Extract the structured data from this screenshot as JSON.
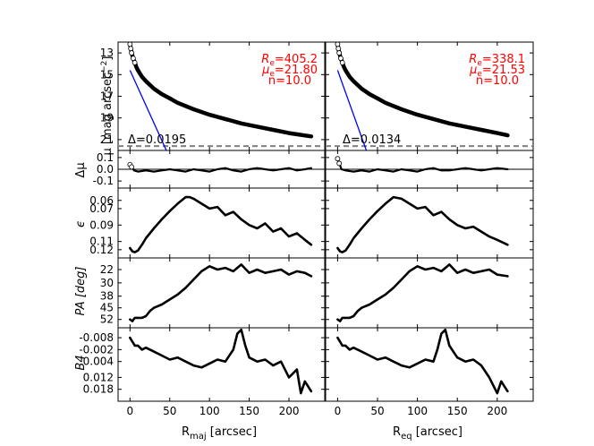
{
  "colors": {
    "fit_line": "#0000ff",
    "sersic_curve": "#ff0000",
    "profile": "#000000",
    "threshold": "#808080",
    "annotation": "#ff0000"
  },
  "xlabels": {
    "left_main": "R",
    "left_sub": "maj",
    "left_rest": " [arcsec]",
    "right_main": "R",
    "right_sub": "eq",
    "right_rest": " [arcsec]"
  },
  "ylabels": {
    "mu": "μ [mag arcsec",
    "mu_exp": "−2",
    "mu_close": "]",
    "dmu": "Δμ",
    "eps": "ϵ",
    "pa": "PA [deg]",
    "b4": "B4"
  },
  "annotations": {
    "left": {
      "re": "R",
      "re_sub": "e",
      "re_val": "=405.2",
      "mue": "μ",
      "mue_sub": "e",
      "mue_val": "=21.80",
      "n": "n=10.0",
      "delta": "Δ=0.0195"
    },
    "right": {
      "re": "R",
      "re_sub": "e",
      "re_val": "=338.1",
      "mue": "μ",
      "mue_sub": "e",
      "mue_val": "=21.53",
      "n": "n=10.0",
      "delta": "Δ=0.0134"
    }
  },
  "chart_data": {
    "type": "line",
    "title": "",
    "x_ticks": [
      0,
      50,
      100,
      150,
      200
    ],
    "columns": [
      {
        "name": "major axis",
        "xlabel": "R_maj [arcsec]",
        "xlim": [
          -15,
          245
        ],
        "xmax_data": 228
      },
      {
        "name": "equivalent radius",
        "xlabel": "R_eq [arcsec]",
        "xlim": [
          -15,
          245
        ],
        "xmax_data": 213
      }
    ],
    "panels": [
      {
        "name": "mu",
        "ylabel": "μ [mag arcsec^-2]",
        "ylim": [
          12,
          22
        ],
        "inverted": true,
        "ticks": [
          "13",
          "15",
          "17",
          "19",
          "21"
        ],
        "threshold": 21.6,
        "series": {
          "left": {
            "x": [
              0,
              1,
              2,
              4,
              6,
              8,
              10,
              15,
              20,
              30,
              40,
              50,
              60,
              80,
              100,
              120,
              140,
              160,
              180,
              200,
              228
            ],
            "y": [
              12.2,
              12.6,
              13.0,
              13.5,
              13.9,
              14.3,
              14.6,
              15.2,
              15.6,
              16.3,
              16.8,
              17.2,
              17.6,
              18.2,
              18.7,
              19.1,
              19.5,
              19.8,
              20.1,
              20.4,
              20.7
            ]
          },
          "right": {
            "x": [
              0,
              1,
              2,
              4,
              6,
              8,
              10,
              15,
              20,
              30,
              40,
              50,
              60,
              80,
              100,
              120,
              140,
              160,
              180,
              200,
              213
            ],
            "y": [
              12.2,
              12.6,
              13.0,
              13.5,
              13.9,
              14.3,
              14.6,
              15.2,
              15.6,
              16.3,
              16.8,
              17.2,
              17.6,
              18.2,
              18.7,
              19.1,
              19.5,
              19.8,
              20.1,
              20.4,
              20.6
            ]
          }
        },
        "fit_line": {
          "left": {
            "x": [
              0,
              47
            ],
            "y": [
              14.6,
              22.2
            ]
          },
          "right": {
            "x": [
              0,
              37
            ],
            "y": [
              14.6,
              22.2
            ]
          }
        }
      },
      {
        "name": "dmu",
        "ylabel": "Δμ",
        "ylim": [
          0.16,
          -0.16
        ],
        "inverted": false,
        "ticks": [
          "-0.1",
          "0.0",
          "0.1"
        ],
        "tick_values": [
          -0.1,
          0.0,
          0.1
        ],
        "series": {
          "left": {
            "x": [
              0,
              2,
              5,
              10,
              20,
              30,
              40,
              50,
              60,
              70,
              80,
              90,
              100,
              110,
              120,
              130,
              140,
              150,
              160,
              170,
              180,
              190,
              200,
              210,
              220,
              228
            ],
            "y": [
              0.04,
              0.02,
              -0.01,
              -0.02,
              -0.01,
              -0.02,
              -0.01,
              0.0,
              -0.01,
              -0.02,
              0.0,
              -0.01,
              -0.02,
              0.0,
              0.01,
              -0.01,
              -0.02,
              0.0,
              0.01,
              0.0,
              -0.01,
              0.0,
              0.01,
              -0.01,
              0.0,
              0.01
            ]
          },
          "right": {
            "x": [
              0,
              2,
              5,
              10,
              20,
              30,
              40,
              50,
              60,
              70,
              80,
              90,
              100,
              110,
              120,
              130,
              140,
              150,
              160,
              170,
              180,
              190,
              200,
              213
            ],
            "y": [
              0.09,
              0.05,
              0.0,
              -0.01,
              -0.02,
              -0.01,
              -0.02,
              0.0,
              -0.01,
              -0.02,
              0.0,
              -0.01,
              -0.02,
              0.0,
              0.01,
              -0.01,
              -0.01,
              0.0,
              0.01,
              0.0,
              -0.01,
              0.0,
              0.01,
              0.0
            ]
          }
        }
      },
      {
        "name": "eps",
        "ylabel": "ϵ",
        "ylim": [
          0.045,
          0.13
        ],
        "ticks": [
          "0.12",
          "0.11",
          "0.09",
          "0.07",
          "0.06"
        ],
        "tick_values": [
          0.12,
          0.11,
          0.09,
          0.07,
          0.06
        ],
        "series": {
          "left": {
            "x": [
              0,
              3,
              6,
              10,
              15,
              20,
              30,
              40,
              50,
              60,
              70,
              75,
              80,
              90,
              100,
              110,
              120,
              130,
              140,
              150,
              160,
              170,
              180,
              190,
              200,
              210,
              220,
              228
            ],
            "y": [
              0.118,
              0.122,
              0.123,
              0.121,
              0.114,
              0.106,
              0.094,
              0.083,
              0.073,
              0.064,
              0.056,
              0.056,
              0.058,
              0.064,
              0.07,
              0.068,
              0.078,
              0.074,
              0.083,
              0.09,
              0.094,
              0.088,
              0.098,
              0.094,
              0.104,
              0.1,
              0.108,
              0.114
            ]
          },
          "right": {
            "x": [
              0,
              3,
              6,
              10,
              15,
              20,
              30,
              40,
              50,
              60,
              70,
              80,
              90,
              100,
              110,
              120,
              130,
              140,
              150,
              160,
              170,
              180,
              190,
              200,
              213
            ],
            "y": [
              0.118,
              0.122,
              0.123,
              0.121,
              0.114,
              0.106,
              0.094,
              0.083,
              0.073,
              0.064,
              0.056,
              0.058,
              0.064,
              0.07,
              0.068,
              0.078,
              0.074,
              0.083,
              0.09,
              0.094,
              0.092,
              0.098,
              0.104,
              0.108,
              0.114
            ]
          }
        }
      },
      {
        "name": "pa",
        "ylabel": "PA [deg]",
        "ylim": [
          15,
          57
        ],
        "ticks": [
          "52",
          "45",
          "38",
          "30",
          "22"
        ],
        "tick_values": [
          52,
          45,
          38,
          30,
          22
        ],
        "series": {
          "left": {
            "x": [
              0,
              3,
              6,
              10,
              15,
              20,
              25,
              30,
              40,
              50,
              60,
              70,
              80,
              90,
              100,
              110,
              120,
              130,
              140,
              150,
              160,
              170,
              180,
              190,
              200,
              210,
              220,
              228
            ],
            "y": [
              52,
              53,
              51,
              51,
              51,
              50,
              47,
              45,
              43,
              40,
              37,
              33,
              28,
              23,
              20,
              22,
              21,
              23,
              19,
              24,
              22,
              24,
              23,
              22,
              25,
              23,
              24,
              26
            ]
          },
          "right": {
            "x": [
              0,
              3,
              6,
              10,
              15,
              20,
              25,
              30,
              40,
              50,
              60,
              70,
              80,
              90,
              100,
              110,
              120,
              130,
              140,
              150,
              160,
              170,
              180,
              190,
              200,
              213
            ],
            "y": [
              52,
              53,
              51,
              51,
              51,
              50,
              47,
              45,
              43,
              40,
              37,
              33,
              28,
              23,
              20,
              22,
              21,
              23,
              19,
              24,
              22,
              24,
              23,
              22,
              25,
              26
            ]
          }
        }
      },
      {
        "name": "b4",
        "ylabel": "B4",
        "ylim": [
          -0.013,
          0.024
        ],
        "ticks": [
          "0.018",
          "0.012",
          "0.004",
          "-0.002",
          "-0.008"
        ],
        "tick_values": [
          0.018,
          0.012,
          0.004,
          -0.002,
          -0.008
        ],
        "series": {
          "left": {
            "x": [
              0,
              3,
              6,
              10,
              15,
              20,
              30,
              40,
              50,
              60,
              70,
              80,
              90,
              100,
              110,
              120,
              130,
              135,
              140,
              145,
              150,
              160,
              170,
              180,
              190,
              200,
              210,
              215,
              220,
              228
            ],
            "y": [
              -0.008,
              -0.006,
              -0.004,
              -0.004,
              -0.002,
              -0.003,
              -0.001,
              0.001,
              0.003,
              0.002,
              0.004,
              0.006,
              0.007,
              0.005,
              0.003,
              0.004,
              -0.002,
              -0.01,
              -0.012,
              -0.004,
              0.002,
              0.004,
              0.003,
              0.006,
              0.004,
              0.012,
              0.008,
              0.02,
              0.014,
              0.019
            ]
          },
          "right": {
            "x": [
              0,
              3,
              6,
              10,
              15,
              20,
              30,
              40,
              50,
              60,
              70,
              80,
              90,
              100,
              110,
              120,
              125,
              130,
              135,
              140,
              150,
              160,
              170,
              180,
              190,
              200,
              205,
              213
            ],
            "y": [
              -0.008,
              -0.006,
              -0.004,
              -0.004,
              -0.002,
              -0.003,
              -0.001,
              0.001,
              0.003,
              0.002,
              0.004,
              0.006,
              0.007,
              0.005,
              0.003,
              0.004,
              -0.002,
              -0.01,
              -0.012,
              -0.004,
              0.002,
              0.004,
              0.003,
              0.006,
              0.012,
              0.02,
              0.014,
              0.019
            ]
          }
        }
      }
    ]
  }
}
